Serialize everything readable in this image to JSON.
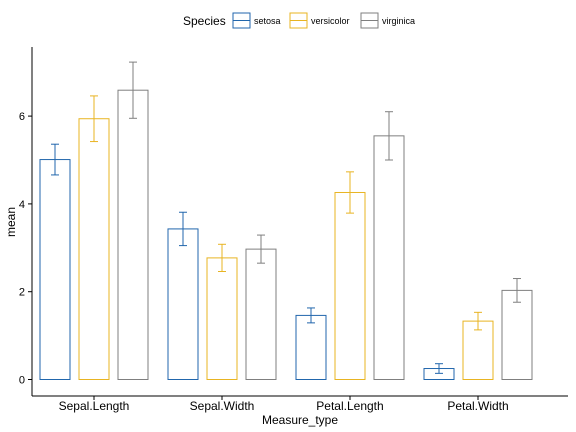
{
  "chart_data": {
    "type": "bar",
    "xlabel": "Measure_type",
    "ylabel": "mean",
    "categories": [
      "Sepal.Length",
      "Sepal.Width",
      "Petal.Length",
      "Petal.Width"
    ],
    "ylim": [
      0,
      7.4
    ],
    "yticks": [
      "0",
      "2",
      "4",
      "6"
    ],
    "legend": {
      "title": "Species",
      "position": "top"
    },
    "series": [
      {
        "name": "setosa",
        "color": "#2166ac",
        "values": [
          5.01,
          3.43,
          1.46,
          0.25
        ],
        "sd": [
          0.35,
          0.38,
          0.17,
          0.11
        ]
      },
      {
        "name": "versicolor",
        "color": "#e8b422",
        "values": [
          5.94,
          2.77,
          4.26,
          1.33
        ],
        "sd": [
          0.52,
          0.31,
          0.47,
          0.2
        ]
      },
      {
        "name": "virginica",
        "color": "#7f7f7f",
        "values": [
          6.59,
          2.97,
          5.55,
          2.03
        ],
        "sd": [
          0.64,
          0.32,
          0.55,
          0.27
        ]
      }
    ]
  }
}
